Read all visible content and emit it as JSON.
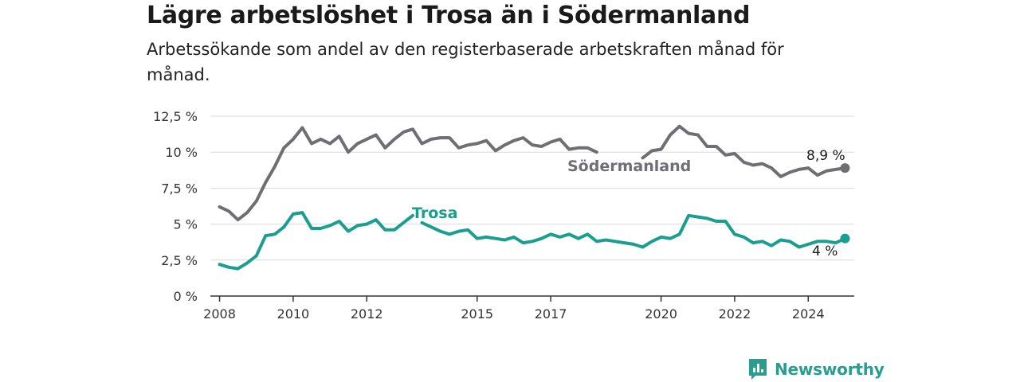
{
  "title": "Lägre arbetslöshet i Trosa än i Södermanland",
  "subtitle": "Arbetssökande som andel av den registerbaserade arbetskraften månad för månad.",
  "brand": {
    "name": "Newsworthy",
    "icon": "newsworthy-logo-icon"
  },
  "colors": {
    "sodermanland": "#6e6e73",
    "trosa": "#1a9e8f",
    "grid": "#d9d9d9",
    "axis": "#333333"
  },
  "chart_data": {
    "type": "line",
    "title": "Lägre arbetslöshet i Trosa än i Södermanland",
    "subtitle": "Arbetssökande som andel av den registerbaserade arbetskraften månad för månad.",
    "ylim": [
      0,
      12.5
    ],
    "xlim": [
      "2007-10",
      "2025-04"
    ],
    "y_ticks": [
      0,
      2.5,
      5,
      7.5,
      10,
      12.5
    ],
    "y_tick_labels": [
      "0 %",
      "2,5 %",
      "5 %",
      "7,5 %",
      "10 %",
      "12,5 %"
    ],
    "x_ticks": [
      "2008-01",
      "2010-01",
      "2012-01",
      "2015-01",
      "2017-01",
      "2020-01",
      "2022-01",
      "2024-01"
    ],
    "x_tick_labels": [
      "2008",
      "2010",
      "2012",
      "2015",
      "2017",
      "2020",
      "2022",
      "2024"
    ],
    "grid": "horizontal",
    "legend": "direct labels on lines",
    "series": [
      {
        "name": "Södermanland",
        "end_label": "8,9 %",
        "x": [
          "2008-01",
          "2008-04",
          "2008-07",
          "2008-10",
          "2009-01",
          "2009-04",
          "2009-07",
          "2009-10",
          "2010-01",
          "2010-04",
          "2010-07",
          "2010-10",
          "2011-01",
          "2011-04",
          "2011-07",
          "2011-10",
          "2012-01",
          "2012-04",
          "2012-07",
          "2012-10",
          "2013-01",
          "2013-04",
          "2013-07",
          "2013-10",
          "2014-01",
          "2014-04",
          "2014-07",
          "2014-10",
          "2015-01",
          "2015-04",
          "2015-07",
          "2015-10",
          "2016-01",
          "2016-04",
          "2016-07",
          "2016-10",
          "2017-01",
          "2017-04",
          "2017-07",
          "2017-10",
          "2018-01",
          "2018-04",
          null,
          "2019-07",
          "2019-10",
          "2020-01",
          "2020-04",
          "2020-07",
          "2020-10",
          "2021-01",
          "2021-04",
          "2021-07",
          "2021-10",
          "2022-01",
          "2022-04",
          "2022-07",
          "2022-10",
          "2023-01",
          "2023-04",
          "2023-07",
          "2023-10",
          "2024-01",
          "2024-04",
          "2024-07",
          "2024-10",
          "2025-01"
        ],
        "values": [
          6.2,
          5.9,
          5.3,
          5.8,
          6.6,
          7.9,
          9.0,
          10.3,
          10.9,
          11.7,
          10.6,
          10.9,
          10.6,
          11.1,
          10.0,
          10.6,
          10.9,
          11.2,
          10.3,
          10.9,
          11.4,
          11.6,
          10.6,
          10.9,
          11.0,
          11.0,
          10.3,
          10.5,
          10.6,
          10.8,
          10.1,
          10.5,
          10.8,
          11.0,
          10.5,
          10.4,
          10.7,
          10.9,
          10.2,
          10.3,
          10.3,
          10.0,
          null,
          9.6,
          10.1,
          10.2,
          11.2,
          11.8,
          11.3,
          11.2,
          10.4,
          10.4,
          9.8,
          9.9,
          9.3,
          9.1,
          9.2,
          8.9,
          8.3,
          8.6,
          8.8,
          8.9,
          8.4,
          8.7,
          8.8,
          8.9
        ]
      },
      {
        "name": "Trosa",
        "end_label": "4 %",
        "x": [
          "2008-01",
          "2008-04",
          "2008-07",
          "2008-10",
          "2009-01",
          "2009-04",
          "2009-07",
          "2009-10",
          "2010-01",
          "2010-04",
          "2010-07",
          "2010-10",
          "2011-01",
          "2011-04",
          "2011-07",
          "2011-10",
          "2012-01",
          "2012-04",
          "2012-07",
          "2012-10",
          "2013-01",
          "2013-04",
          null,
          "2013-07",
          "2013-10",
          "2014-01",
          "2014-04",
          "2014-07",
          "2014-10",
          "2015-01",
          "2015-04",
          "2015-07",
          "2015-10",
          "2016-01",
          "2016-04",
          "2016-07",
          "2016-10",
          "2017-01",
          "2017-04",
          "2017-07",
          "2017-10",
          "2018-01",
          "2018-04",
          "2018-07",
          "2018-10",
          "2019-01",
          "2019-04",
          "2019-07",
          "2019-10",
          "2020-01",
          "2020-04",
          "2020-07",
          "2020-10",
          "2021-01",
          "2021-04",
          "2021-07",
          "2021-10",
          "2022-01",
          "2022-04",
          "2022-07",
          "2022-10",
          "2023-01",
          "2023-04",
          "2023-07",
          "2023-10",
          "2024-01",
          "2024-04",
          "2024-07",
          "2024-10",
          "2025-01"
        ],
        "values": [
          2.2,
          2.0,
          1.9,
          2.3,
          2.8,
          4.2,
          4.3,
          4.8,
          5.7,
          5.8,
          4.7,
          4.7,
          4.9,
          5.2,
          4.5,
          4.9,
          5.0,
          5.3,
          4.6,
          4.6,
          5.1,
          5.6,
          null,
          5.1,
          4.8,
          4.5,
          4.3,
          4.5,
          4.6,
          4.0,
          4.1,
          4.0,
          3.9,
          4.1,
          3.7,
          3.8,
          4.0,
          4.3,
          4.1,
          4.3,
          4.0,
          4.3,
          3.8,
          3.9,
          3.8,
          3.7,
          3.6,
          3.4,
          3.8,
          4.1,
          4.0,
          4.3,
          5.6,
          5.5,
          5.4,
          5.2,
          5.2,
          4.3,
          4.1,
          3.7,
          3.8,
          3.5,
          3.9,
          3.8,
          3.4,
          3.6,
          3.8,
          3.8,
          3.7,
          4.0
        ]
      }
    ]
  }
}
